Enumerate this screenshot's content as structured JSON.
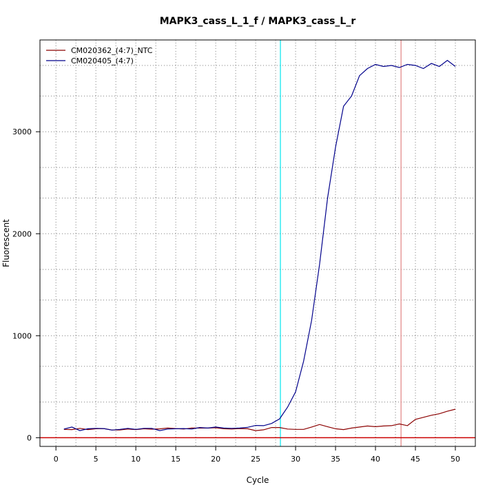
{
  "chart_data": {
    "type": "line",
    "title": "MAPK3_cass_L_1_f / MAPK3_cass_L_r",
    "xlabel": "Cycle",
    "ylabel": "Fluorescent",
    "xlim": [
      -2,
      52.5
    ],
    "ylim": [
      -85,
      3900
    ],
    "x_ticks": [
      0,
      5,
      10,
      15,
      20,
      25,
      30,
      35,
      40,
      45,
      50
    ],
    "y_ticks": [
      0,
      1000,
      2000,
      3000
    ],
    "grid": true,
    "grid_minor_y": [
      350,
      700,
      1350,
      1650,
      2350,
      2650,
      3350,
      3650
    ],
    "grid_minor_x": [
      2.5,
      7.5,
      12.5,
      17.5,
      22.5,
      27.5,
      32.5,
      37.5,
      42.5,
      47.5
    ],
    "legend_position": "top-left",
    "threshold_lines": [
      {
        "orientation": "vertical",
        "x": 28.1,
        "color": "#00e5ee"
      },
      {
        "orientation": "vertical",
        "x": 43.2,
        "color": "#e08080"
      },
      {
        "orientation": "horizontal",
        "y": 0,
        "color": "#cc0000"
      }
    ],
    "series": [
      {
        "name": "CM020362_(4:7)_NTC",
        "color": "#8b0000",
        "x": [
          1,
          2,
          3,
          4,
          5,
          6,
          7,
          8,
          9,
          10,
          11,
          12,
          13,
          14,
          15,
          16,
          17,
          18,
          19,
          20,
          21,
          22,
          23,
          24,
          25,
          26,
          27,
          28,
          29,
          30,
          31,
          32,
          33,
          34,
          35,
          36,
          37,
          38,
          39,
          40,
          41,
          42,
          43,
          44,
          45,
          46,
          47,
          48,
          49,
          50
        ],
        "values": [
          82,
          80,
          92,
          80,
          88,
          90,
          76,
          76,
          85,
          80,
          88,
          84,
          87,
          95,
          90,
          85,
          95,
          95,
          95,
          98,
          88,
          85,
          90,
          88,
          70,
          78,
          100,
          100,
          85,
          82,
          82,
          105,
          130,
          108,
          88,
          80,
          95,
          105,
          115,
          108,
          115,
          118,
          135,
          118,
          180,
          200,
          220,
          235,
          260,
          280
        ]
      },
      {
        "name": "CM020405_(4:7)",
        "color": "#00008b",
        "x": [
          1,
          2,
          3,
          4,
          5,
          6,
          7,
          8,
          9,
          10,
          11,
          12,
          13,
          14,
          15,
          16,
          17,
          18,
          19,
          20,
          21,
          22,
          23,
          24,
          25,
          26,
          27,
          28,
          29,
          30,
          31,
          32,
          33,
          34,
          35,
          36,
          37,
          38,
          39,
          40,
          41,
          42,
          43,
          44,
          45,
          46,
          47,
          48,
          49,
          50
        ],
        "values": [
          85,
          105,
          70,
          88,
          92,
          90,
          75,
          82,
          92,
          82,
          92,
          92,
          70,
          85,
          88,
          90,
          85,
          100,
          95,
          105,
          95,
          92,
          95,
          102,
          120,
          118,
          140,
          185,
          300,
          450,
          750,
          1150,
          1700,
          2350,
          2850,
          3250,
          3350,
          3550,
          3620,
          3660,
          3640,
          3650,
          3630,
          3660,
          3650,
          3620,
          3670,
          3640,
          3700,
          3640
        ]
      }
    ]
  }
}
